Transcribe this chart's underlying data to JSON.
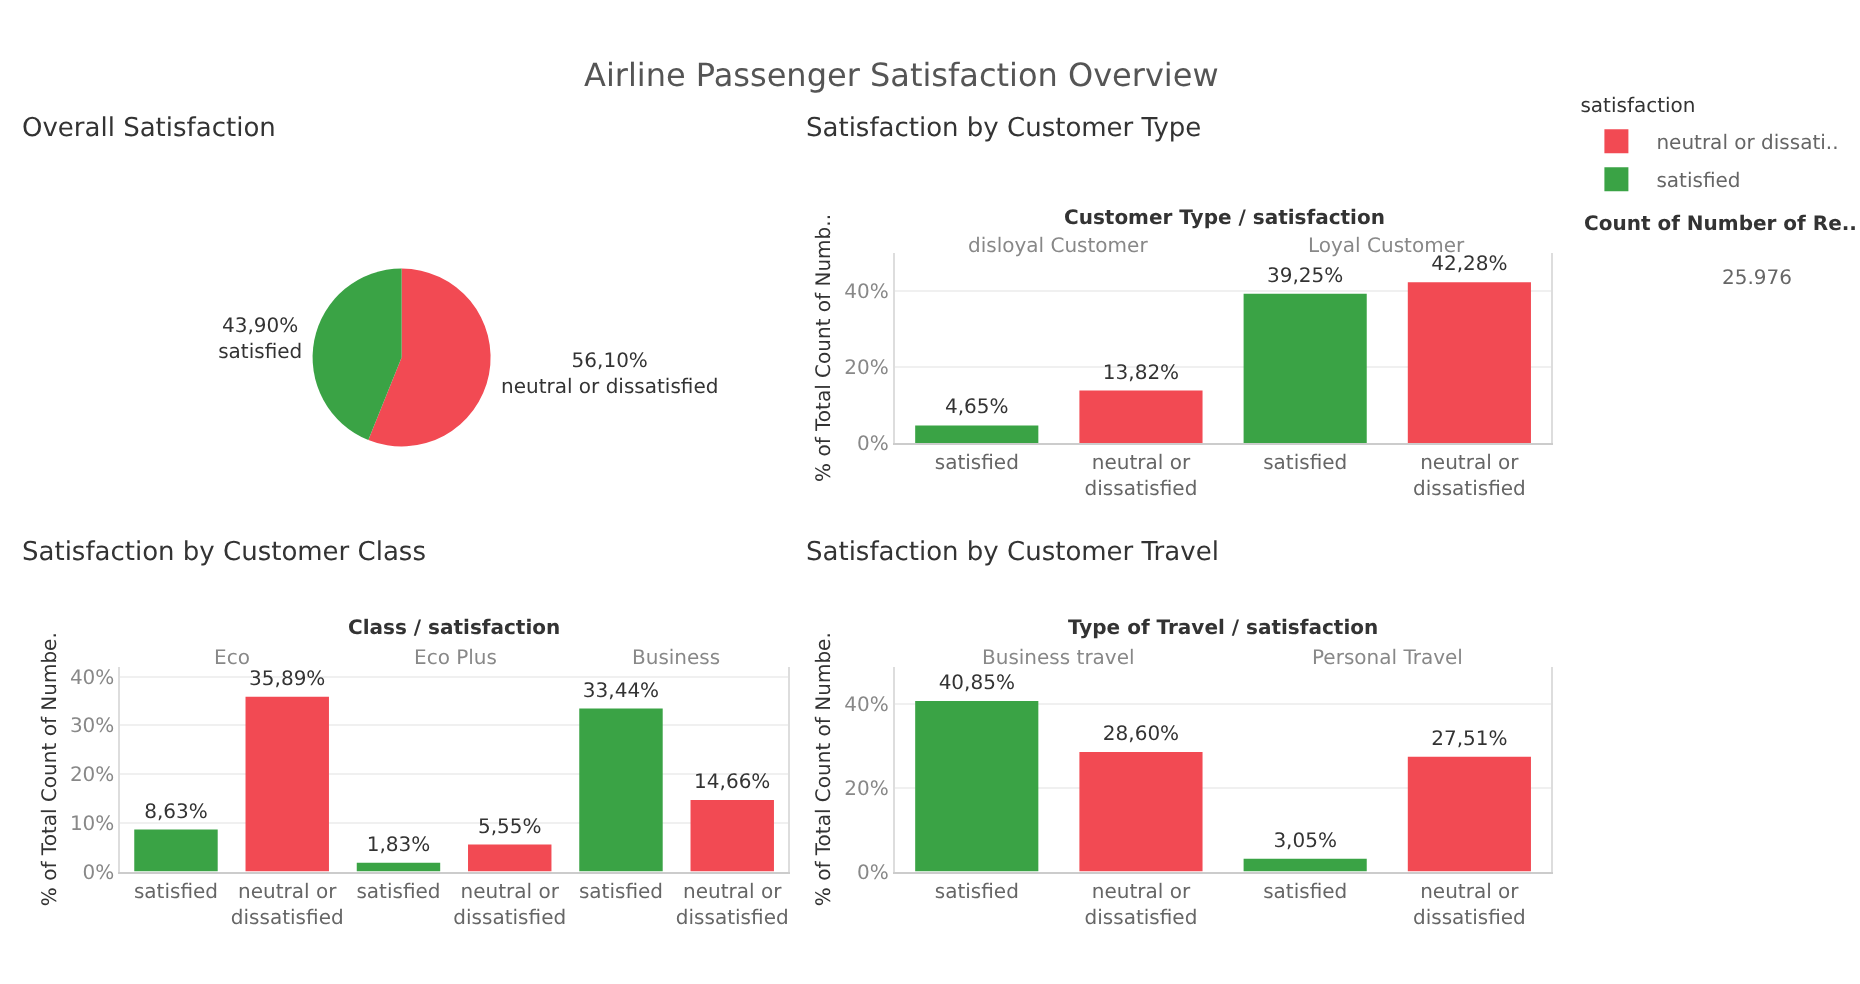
{
  "chart_data": [
    {
      "type": "pie",
      "title": "Overall Satisfaction",
      "categories": [
        "neutral or dissatisfied",
        "satisfied"
      ],
      "values": [
        56.1,
        43.9
      ],
      "colors": [
        "#f24a53",
        "#3aa345"
      ],
      "value_labels": [
        "56,10%",
        "43,90%"
      ],
      "legend": false
    },
    {
      "type": "bar",
      "title": "Satisfaction by Customer Type",
      "categories": [
        "satisfied",
        "neutral or dissatisfied",
        "satisfied",
        "neutral or dissatisfied"
      ],
      "ylabel": "% of Total Count of Numb..",
      "legend_title": "satisfaction",
      "legend": "top right",
      "grid": "y",
      "ylim": [
        0,
        50
      ],
      "yticks": [
        {
          "value": 0,
          "label": "0%"
        },
        {
          "value": 20,
          "label": "20%"
        },
        {
          "value": 40,
          "label": "40%"
        }
      ],
      "annotations": [
        "Customer Type / satisfaction",
        "disloyal Customer",
        "Loyal Customer"
      ],
      "series": [
        {
          "name": "neutral or dissati..",
          "color": "#f24a53",
          "values": [
            null,
            13.82,
            null,
            42.28
          ],
          "value_labels": [
            null,
            "13,82%",
            null,
            "42,28%"
          ]
        },
        {
          "name": "satisfied",
          "color": "#3aa345",
          "values": [
            4.65,
            null,
            39.25,
            null
          ],
          "value_labels": [
            "4,65%",
            null,
            "39,25%",
            null
          ]
        }
      ]
    },
    {
      "type": "other",
      "title": "Airline Passenger Satisfaction Overview",
      "annotations": [
        "Count of Number of Re..",
        "25.976"
      ]
    },
    {
      "type": "bar",
      "title": "Satisfaction by Customer Class",
      "categories": [
        "satisfied",
        "neutral or dissatisfied",
        "satisfied",
        "neutral or dissatisfied",
        "satisfied",
        "neutral or dissatisfied"
      ],
      "ylabel": "% of Total Count of Numbe.",
      "grid": "y",
      "ylim": [
        0,
        42
      ],
      "yticks": [
        {
          "value": 0,
          "label": "0%"
        },
        {
          "value": 10,
          "label": "10%"
        },
        {
          "value": 20,
          "label": "20%"
        },
        {
          "value": 30,
          "label": "30%"
        },
        {
          "value": 40,
          "label": "40%"
        }
      ],
      "annotations": [
        "Class / satisfaction",
        "Eco",
        "Eco Plus",
        "Business"
      ],
      "values": [
        8.63,
        35.89,
        1.83,
        5.55,
        33.44,
        14.66
      ],
      "colors": [
        "#3aa345",
        "#f24a53",
        "#3aa345",
        "#f24a53",
        "#3aa345",
        "#f24a53"
      ],
      "value_labels": [
        "8,63%",
        "35,89%",
        "1,83%",
        "5,55%",
        "33,44%",
        "14,66%"
      ]
    },
    {
      "type": "bar",
      "title": "Satisfaction by Customer Travel",
      "categories": [
        "satisfied",
        "neutral or dissatisfied",
        "satisfied",
        "neutral or dissatisfied"
      ],
      "ylabel": "% of Total Count of Numbe.",
      "grid": "y",
      "ylim": [
        0,
        49
      ],
      "yticks": [
        {
          "value": 0,
          "label": "0%"
        },
        {
          "value": 20,
          "label": "20%"
        },
        {
          "value": 40,
          "label": "40%"
        }
      ],
      "annotations": [
        "Type of Travel / satisfaction",
        "Business travel",
        "Personal Travel"
      ],
      "values": [
        40.85,
        28.6,
        3.05,
        27.51
      ],
      "colors": [
        "#3aa345",
        "#f24a53",
        "#3aa345",
        "#f24a53"
      ],
      "value_labels": [
        "40,85%",
        "28,60%",
        "3,05%",
        "27,51%"
      ]
    }
  ]
}
